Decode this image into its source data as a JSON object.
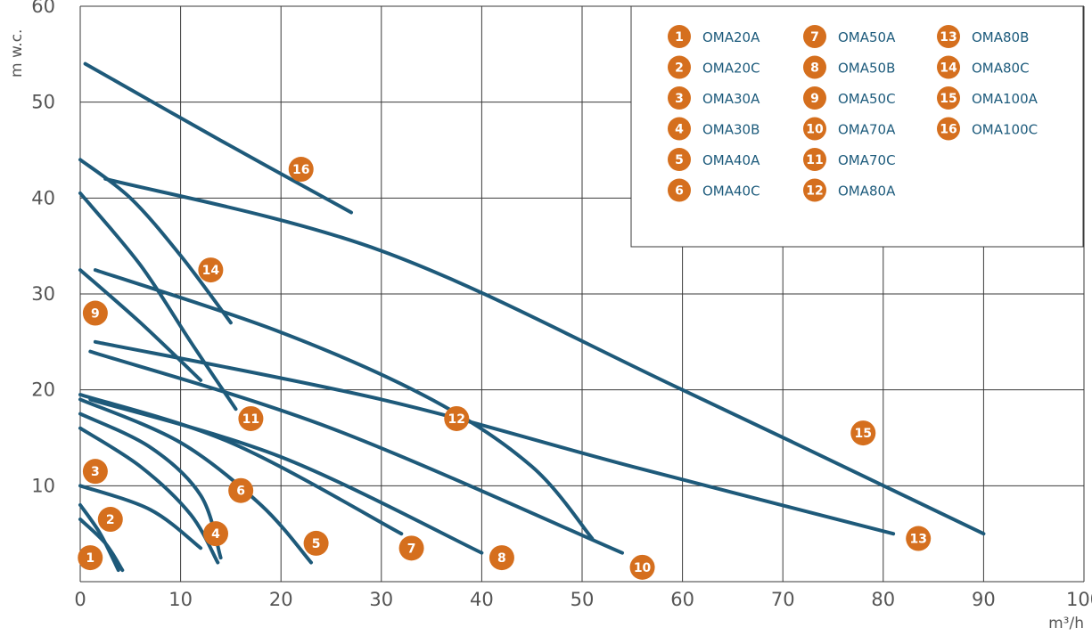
{
  "chart_data": {
    "type": "line",
    "title": "",
    "xlabel": "m³/h",
    "ylabel": "m w.c.",
    "xlim": [
      0,
      100
    ],
    "ylim": [
      0,
      60
    ],
    "x_ticks": [
      "0",
      "10",
      "20",
      "30",
      "40",
      "50",
      "60",
      "70",
      "80",
      "90",
      "100"
    ],
    "y_ticks": [
      "10",
      "20",
      "30",
      "40",
      "50",
      "60"
    ],
    "grid": true,
    "legend_position": "top-right",
    "colors": {
      "curve": "#1e5a7a",
      "badge": "#d56f1e",
      "legend_text": "#1d5b7c",
      "grid": "#3a3a3a"
    },
    "series": [
      {
        "id": "1",
        "name": "OMA20A",
        "label_at": [
          1,
          2.5
        ],
        "points": [
          [
            0,
            6.5
          ],
          [
            2.5,
            4
          ],
          [
            4.2,
            1.2
          ]
        ]
      },
      {
        "id": "2",
        "name": "OMA20C",
        "label_at": [
          3,
          6.5
        ],
        "points": [
          [
            0,
            8
          ],
          [
            2,
            5
          ],
          [
            3.8,
            1.2
          ]
        ]
      },
      {
        "id": "3",
        "name": "OMA30A",
        "label_at": [
          1.5,
          11.5
        ],
        "points": [
          [
            0,
            10
          ],
          [
            7,
            7.5
          ],
          [
            12,
            3.5
          ]
        ]
      },
      {
        "id": "4",
        "name": "OMA30B",
        "label_at": [
          13.5,
          5
        ],
        "points": [
          [
            0,
            16
          ],
          [
            6,
            12
          ],
          [
            11,
            7
          ],
          [
            13.7,
            2
          ]
        ]
      },
      {
        "id": "5",
        "name": "OMA40A",
        "label_at": [
          23.5,
          4
        ],
        "points": [
          [
            0,
            19
          ],
          [
            10,
            14.5
          ],
          [
            18,
            8
          ],
          [
            23,
            2
          ]
        ]
      },
      {
        "id": "6",
        "name": "OMA40C",
        "label_at": [
          16,
          9.5
        ],
        "points": [
          [
            0,
            17.5
          ],
          [
            7,
            14
          ],
          [
            12,
            9
          ],
          [
            14,
            2.5
          ]
        ]
      },
      {
        "id": "7",
        "name": "OMA50A",
        "label_at": [
          33,
          3.5
        ],
        "points": [
          [
            0,
            19.5
          ],
          [
            15,
            14.5
          ],
          [
            32,
            5
          ]
        ]
      },
      {
        "id": "8",
        "name": "OMA50B",
        "label_at": [
          42,
          2.5
        ],
        "points": [
          [
            1,
            19
          ],
          [
            20,
            13
          ],
          [
            40,
            3
          ]
        ]
      },
      {
        "id": "9",
        "name": "OMA50C",
        "label_at": [
          1.5,
          28
        ],
        "points": [
          [
            0,
            32.5
          ],
          [
            6,
            27
          ],
          [
            12,
            21
          ]
        ]
      },
      {
        "id": "10",
        "name": "OMA70A",
        "label_at": [
          56,
          1.5
        ],
        "points": [
          [
            1,
            24
          ],
          [
            25,
            16
          ],
          [
            54,
            3
          ]
        ]
      },
      {
        "id": "11",
        "name": "OMA70C",
        "label_at": [
          17,
          17
        ],
        "points": [
          [
            0,
            40.5
          ],
          [
            6,
            33
          ],
          [
            11,
            25
          ],
          [
            15.5,
            18
          ]
        ]
      },
      {
        "id": "12",
        "name": "OMA80A",
        "label_at": [
          37.5,
          17
        ],
        "points": [
          [
            1.5,
            32.5
          ],
          [
            20,
            26
          ],
          [
            35,
            19
          ],
          [
            45,
            12
          ],
          [
            51,
            4.5
          ]
        ]
      },
      {
        "id": "13",
        "name": "OMA80B",
        "label_at": [
          83.5,
          4.5
        ],
        "points": [
          [
            1.5,
            25
          ],
          [
            30,
            19
          ],
          [
            55,
            12
          ],
          [
            81,
            5
          ]
        ]
      },
      {
        "id": "14",
        "name": "OMA80C",
        "label_at": [
          13,
          32.5
        ],
        "points": [
          [
            0,
            44
          ],
          [
            5,
            40
          ],
          [
            10,
            34
          ],
          [
            15,
            27
          ]
        ]
      },
      {
        "id": "15",
        "name": "OMA100A",
        "label_at": [
          78,
          15.5
        ],
        "points": [
          [
            2.5,
            42
          ],
          [
            30,
            34.5
          ],
          [
            60,
            20
          ],
          [
            90,
            5
          ]
        ]
      },
      {
        "id": "16",
        "name": "OMA100C",
        "label_at": [
          22,
          43
        ],
        "points": [
          [
            0.5,
            54
          ],
          [
            14,
            46
          ],
          [
            27,
            38.5
          ]
        ]
      }
    ]
  }
}
